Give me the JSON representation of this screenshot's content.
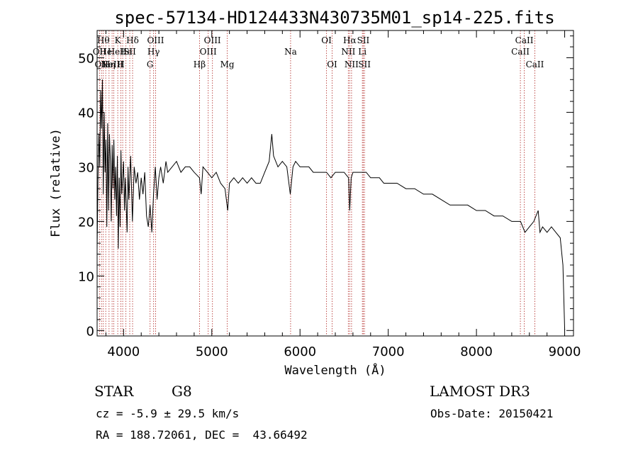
{
  "chart_data": {
    "type": "line",
    "title": "spec-57134-HD124433N430735M01_sp14-225.fits",
    "xlabel": "Wavelength (Å)",
    "ylabel": "Flux (relative)",
    "xlim": [
      3700,
      9100
    ],
    "ylim": [
      -1,
      55
    ],
    "x_ticks": [
      4000,
      5000,
      6000,
      7000,
      8000,
      9000
    ],
    "y_ticks": [
      0,
      10,
      20,
      30,
      40,
      50
    ],
    "series": [
      {
        "name": "flux",
        "color": "#000000",
        "points": [
          [
            3700,
            15
          ],
          [
            3710,
            28
          ],
          [
            3720,
            36
          ],
          [
            3730,
            30
          ],
          [
            3740,
            44
          ],
          [
            3750,
            37
          ],
          [
            3760,
            46
          ],
          [
            3770,
            25
          ],
          [
            3780,
            40
          ],
          [
            3790,
            29
          ],
          [
            3800,
            35
          ],
          [
            3810,
            19
          ],
          [
            3820,
            38
          ],
          [
            3830,
            22
          ],
          [
            3840,
            36
          ],
          [
            3850,
            31
          ],
          [
            3860,
            20
          ],
          [
            3870,
            34
          ],
          [
            3880,
            26
          ],
          [
            3890,
            35
          ],
          [
            3900,
            24
          ],
          [
            3910,
            30
          ],
          [
            3920,
            21
          ],
          [
            3930,
            32
          ],
          [
            3940,
            15
          ],
          [
            3950,
            28
          ],
          [
            3960,
            19
          ],
          [
            3970,
            33
          ],
          [
            3980,
            25
          ],
          [
            4000,
            31
          ],
          [
            4010,
            22
          ],
          [
            4020,
            28
          ],
          [
            4040,
            18
          ],
          [
            4050,
            30
          ],
          [
            4060,
            24
          ],
          [
            4080,
            32
          ],
          [
            4100,
            20
          ],
          [
            4120,
            30
          ],
          [
            4140,
            27
          ],
          [
            4160,
            29
          ],
          [
            4180,
            24
          ],
          [
            4200,
            28
          ],
          [
            4220,
            25
          ],
          [
            4240,
            29
          ],
          [
            4260,
            21
          ],
          [
            4280,
            19
          ],
          [
            4300,
            23
          ],
          [
            4320,
            18
          ],
          [
            4340,
            25
          ],
          [
            4360,
            30
          ],
          [
            4380,
            24
          ],
          [
            4400,
            28
          ],
          [
            4420,
            30
          ],
          [
            4450,
            27
          ],
          [
            4480,
            31
          ],
          [
            4500,
            29
          ],
          [
            4550,
            30
          ],
          [
            4600,
            31
          ],
          [
            4650,
            29
          ],
          [
            4700,
            30
          ],
          [
            4750,
            30
          ],
          [
            4800,
            29
          ],
          [
            4860,
            28
          ],
          [
            4880,
            25
          ],
          [
            4900,
            30
          ],
          [
            4950,
            29
          ],
          [
            5000,
            28
          ],
          [
            5050,
            29
          ],
          [
            5100,
            27
          ],
          [
            5150,
            26
          ],
          [
            5180,
            22
          ],
          [
            5200,
            27
          ],
          [
            5250,
            28
          ],
          [
            5300,
            27
          ],
          [
            5350,
            28
          ],
          [
            5400,
            27
          ],
          [
            5450,
            28
          ],
          [
            5500,
            27
          ],
          [
            5550,
            27
          ],
          [
            5600,
            29
          ],
          [
            5650,
            31
          ],
          [
            5680,
            36
          ],
          [
            5700,
            32
          ],
          [
            5750,
            30
          ],
          [
            5800,
            31
          ],
          [
            5850,
            30
          ],
          [
            5890,
            25
          ],
          [
            5920,
            30
          ],
          [
            5950,
            31
          ],
          [
            6000,
            30
          ],
          [
            6050,
            30
          ],
          [
            6100,
            30
          ],
          [
            6150,
            29
          ],
          [
            6200,
            29
          ],
          [
            6250,
            29
          ],
          [
            6300,
            29
          ],
          [
            6350,
            28
          ],
          [
            6400,
            29
          ],
          [
            6450,
            29
          ],
          [
            6500,
            29
          ],
          [
            6550,
            28
          ],
          [
            6563,
            22
          ],
          [
            6580,
            28
          ],
          [
            6600,
            29
          ],
          [
            6650,
            29
          ],
          [
            6700,
            29
          ],
          [
            6750,
            29
          ],
          [
            6800,
            28
          ],
          [
            6850,
            28
          ],
          [
            6900,
            28
          ],
          [
            6950,
            27
          ],
          [
            7000,
            27
          ],
          [
            7100,
            27
          ],
          [
            7200,
            26
          ],
          [
            7300,
            26
          ],
          [
            7400,
            25
          ],
          [
            7500,
            25
          ],
          [
            7600,
            24
          ],
          [
            7700,
            23
          ],
          [
            7800,
            23
          ],
          [
            7900,
            23
          ],
          [
            8000,
            22
          ],
          [
            8100,
            22
          ],
          [
            8200,
            21
          ],
          [
            8300,
            21
          ],
          [
            8400,
            20
          ],
          [
            8500,
            20
          ],
          [
            8550,
            18
          ],
          [
            8600,
            19
          ],
          [
            8650,
            20
          ],
          [
            8700,
            22
          ],
          [
            8720,
            18
          ],
          [
            8750,
            19
          ],
          [
            8800,
            18
          ],
          [
            8850,
            19
          ],
          [
            8900,
            18
          ],
          [
            8950,
            17
          ],
          [
            8980,
            12
          ],
          [
            9000,
            0
          ]
        ]
      }
    ],
    "line_markers": [
      {
        "wl": 3727,
        "label": "OII",
        "row": 2
      },
      {
        "wl": 3750,
        "label": "OII",
        "row": 3
      },
      {
        "wl": 3770,
        "label": "Hθ",
        "row": 1
      },
      {
        "wl": 3798,
        "label": "He",
        "row": 2
      },
      {
        "wl": 3835,
        "label": "Hη",
        "row": 3
      },
      {
        "wl": 3870,
        "label": "NeIII",
        "row": 3
      },
      {
        "wl": 3889,
        "label": "He",
        "row": 2
      },
      {
        "wl": 3934,
        "label": "K",
        "row": 1
      },
      {
        "wl": 3969,
        "label": "H",
        "row": 3
      },
      {
        "wl": 3990,
        "label": "I",
        "row": 2
      },
      {
        "wl": 4026,
        "label": "He",
        "row": 2
      },
      {
        "wl": 4070,
        "label": "SII",
        "row": 2
      },
      {
        "wl": 4102,
        "label": "Hδ",
        "row": 1
      },
      {
        "wl": 4300,
        "label": "G",
        "row": 3
      },
      {
        "wl": 4340,
        "label": "Hγ",
        "row": 2
      },
      {
        "wl": 4363,
        "label": "OIII",
        "row": 1
      },
      {
        "wl": 4861,
        "label": "Hβ",
        "row": 3
      },
      {
        "wl": 4959,
        "label": "OIII",
        "row": 2
      },
      {
        "wl": 5007,
        "label": "OIII",
        "row": 1
      },
      {
        "wl": 5175,
        "label": "Mg",
        "row": 3
      },
      {
        "wl": 5893,
        "label": "Na",
        "row": 2
      },
      {
        "wl": 6300,
        "label": "OI",
        "row": 1
      },
      {
        "wl": 6364,
        "label": "OI",
        "row": 3
      },
      {
        "wl": 6548,
        "label": "NII",
        "row": 2
      },
      {
        "wl": 6563,
        "label": "Hα",
        "row": 1
      },
      {
        "wl": 6584,
        "label": "NII",
        "row": 3
      },
      {
        "wl": 6707,
        "label": "Li",
        "row": 2
      },
      {
        "wl": 6717,
        "label": "SII",
        "row": 1
      },
      {
        "wl": 6731,
        "label": "SII",
        "row": 3
      },
      {
        "wl": 8498,
        "label": "CaII",
        "row": 2
      },
      {
        "wl": 8542,
        "label": "CaII",
        "row": 1
      },
      {
        "wl": 8662,
        "label": "CaII",
        "row": 3
      }
    ],
    "marker_color": "#c0504d"
  },
  "info": {
    "object_class": "STAR",
    "subclass": "G8",
    "survey": "LAMOST DR3",
    "redshift": "cz = -5.9 ± 29.5 km/s",
    "obs_date": "Obs-Date: 20150421",
    "coords": "RA = 188.72061, DEC =  43.66492"
  }
}
